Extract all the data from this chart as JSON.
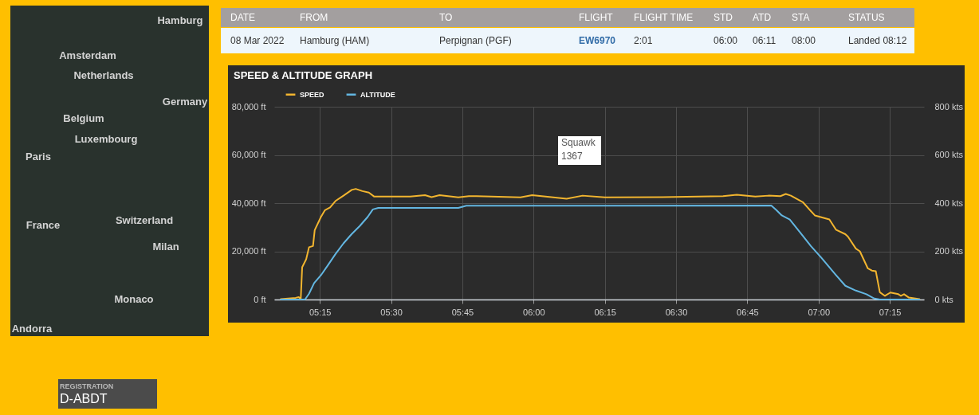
{
  "chart_data": [
    {
      "type": "other",
      "annotations": [
        "Hamburg",
        "Amsterdam",
        "Netherlands",
        "Germany",
        "Belgium",
        "Luxembourg",
        "Paris",
        "France",
        "Switzerland",
        "Milan",
        "Monaco",
        "Andorra"
      ]
    },
    {
      "type": "other",
      "categories": [
        "DATE",
        "FROM",
        "TO",
        "FLIGHT",
        "FLIGHT TIME",
        "STD",
        "ATD",
        "STA",
        "STATUS"
      ],
      "annotations": [
        "08 Mar 2022",
        "Hamburg (HAM)",
        "Perpignan (PGF)",
        "EW6970",
        "2:01",
        "06:00",
        "06:11",
        "08:00",
        "Landed 08:12"
      ]
    },
    {
      "type": "line",
      "title": "SPEED & ALTITUDE GRAPH",
      "legend": "top left",
      "grid": true,
      "series": [
        {
          "name": "SPEED",
          "color": "#f2b52f",
          "axis": "y2",
          "x": [
            5.113,
            5.165,
            5.176,
            5.183,
            5.188,
            5.202,
            5.212,
            5.226,
            5.232,
            5.254,
            5.268,
            5.286,
            5.305,
            5.333,
            5.362,
            5.376,
            5.399,
            5.422,
            5.441,
            5.567,
            5.619,
            5.642,
            5.67,
            5.736,
            5.773,
            5.8,
            5.954,
            5.995,
            6.116,
            6.172,
            6.25,
            6.451,
            6.665,
            6.713,
            6.778,
            6.824,
            6.866,
            6.885,
            6.903,
            6.945,
            6.987,
            7.038,
            7.061,
            7.094,
            7.103,
            7.131,
            7.145,
            7.173,
            7.187,
            7.201,
            7.215,
            7.233,
            7.252,
            7.28,
            7.289,
            7.3,
            7.317,
            7.354
          ],
          "values": [
            2,
            7,
            10,
            2,
            134,
            167,
            217,
            222,
            288,
            343,
            371,
            382,
            409,
            431,
            455,
            459,
            450,
            444,
            427,
            427,
            433,
            425,
            433,
            424,
            429,
            429,
            424,
            433,
            418,
            431,
            424,
            425,
            429,
            435,
            427,
            431,
            429,
            438,
            431,
            404,
            349,
            332,
            290,
            271,
            261,
            211,
            200,
            129,
            120,
            117,
            30,
            15,
            29,
            22,
            15,
            22,
            8,
            2
          ]
        },
        {
          "name": "ALTITUDE",
          "color": "#63b6e1",
          "x": [
            5.113,
            5.198,
            5.212,
            5.23,
            5.254,
            5.277,
            5.305,
            5.333,
            5.362,
            5.39,
            5.418,
            5.436,
            5.455,
            5.736,
            5.764,
            6.834,
            6.852,
            6.871,
            6.899,
            6.936,
            6.973,
            7.01,
            7.057,
            7.094,
            7.131,
            7.168,
            7.196,
            7.215,
            7.354
          ],
          "values": [
            0,
            0,
            2400,
            6800,
            10100,
            14000,
            18900,
            23300,
            27200,
            30500,
            34300,
            37400,
            38000,
            38000,
            38900,
            39000,
            37100,
            34900,
            33200,
            27700,
            22200,
            17300,
            10700,
            5700,
            3700,
            2200,
            400,
            0,
            0
          ]
        }
      ],
      "xlim": [
        5.09,
        7.37
      ],
      "xticks": [
        {
          "value": 5.25,
          "label": "05:15"
        },
        {
          "value": 5.5,
          "label": "05:30"
        },
        {
          "value": 5.75,
          "label": "05:45"
        },
        {
          "value": 6,
          "label": "06:00"
        },
        {
          "value": 6.25,
          "label": "06:15"
        },
        {
          "value": 6.5,
          "label": "06:30"
        },
        {
          "value": 6.75,
          "label": "06:45"
        },
        {
          "value": 7,
          "label": "07:00"
        },
        {
          "value": 7.25,
          "label": "07:15"
        }
      ],
      "ylim": [
        0,
        80000
      ],
      "yticks": [
        {
          "value": 0,
          "label": "0 ft"
        },
        {
          "value": 20000,
          "label": "20,000 ft"
        },
        {
          "value": 40000,
          "label": "40,000 ft"
        },
        {
          "value": 60000,
          "label": "60,000 ft"
        },
        {
          "value": 80000,
          "label": "80,000 ft"
        }
      ],
      "y2lim": [
        0,
        800
      ],
      "y2ticks": [
        {
          "value": 0,
          "label": "0 kts"
        },
        {
          "value": 200,
          "label": "200 kts"
        },
        {
          "value": 400,
          "label": "400 kts"
        },
        {
          "value": 600,
          "label": "600 kts"
        },
        {
          "value": 800,
          "label": "800 kts"
        }
      ],
      "annotations": [
        "Squawk 1367"
      ]
    },
    {
      "type": "other",
      "annotations": [
        "REGISTRATION",
        "D-ABDT"
      ]
    }
  ]
}
